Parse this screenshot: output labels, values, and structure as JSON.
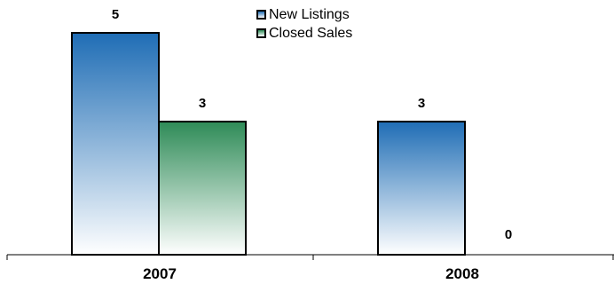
{
  "chart_data": {
    "type": "bar",
    "categories": [
      "2007",
      "2008"
    ],
    "series": [
      {
        "name": "New Listings",
        "values": [
          5,
          3
        ],
        "color": "#1f6db5"
      },
      {
        "name": "Closed Sales",
        "values": [
          3,
          0
        ],
        "color": "#2e8b57"
      }
    ],
    "ylim": [
      0,
      5
    ],
    "grid": false,
    "legend_placement": "top-center"
  },
  "legend": {
    "items": [
      {
        "label": "New Listings"
      },
      {
        "label": "Closed Sales"
      }
    ]
  }
}
